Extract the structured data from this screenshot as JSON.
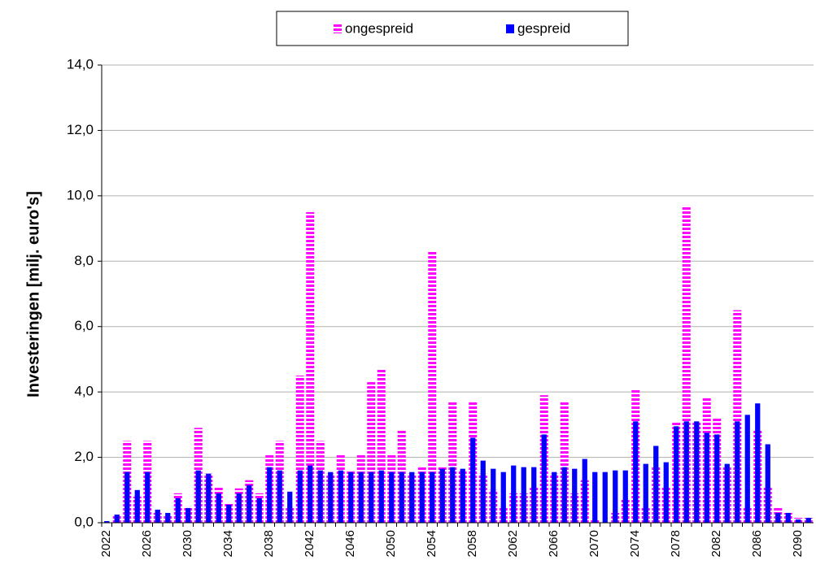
{
  "chart_data": {
    "type": "bar",
    "ylabel": "Investeringen [milj. euro's]",
    "categories": [
      "2022",
      null,
      null,
      null,
      "2026",
      null,
      null,
      null,
      "2030",
      null,
      null,
      null,
      "2034",
      null,
      null,
      null,
      "2038",
      null,
      null,
      null,
      "2042",
      null,
      null,
      null,
      "2046",
      null,
      null,
      null,
      "2050",
      null,
      null,
      null,
      "2054",
      null,
      null,
      null,
      "2058",
      null,
      null,
      null,
      "2062",
      null,
      null,
      null,
      "2066",
      null,
      null,
      null,
      "2070",
      null,
      null,
      null,
      "2074",
      null,
      null,
      null,
      "2078",
      null,
      null,
      null,
      "2082",
      null,
      null,
      null,
      "2086",
      null,
      null,
      null,
      "2090",
      null
    ],
    "series": [
      {
        "name": "ongespreid",
        "color": "#ff00ff",
        "values": [
          0,
          0.2,
          2.5,
          0.8,
          2.5,
          0.3,
          0.2,
          0.9,
          0.5,
          2.9,
          1.5,
          1.1,
          0.6,
          1.05,
          1.3,
          0.9,
          2.1,
          2.5,
          0.5,
          4.5,
          9.5,
          2.5,
          1.5,
          2.1,
          1.6,
          2.1,
          4.3,
          4.7,
          2.1,
          2.85,
          1.5,
          1.7,
          8.3,
          1.7,
          3.7,
          1.6,
          3.7,
          1.5,
          1.0,
          0.5,
          0.9,
          0.9,
          1.1,
          3.9,
          1.5,
          3.7,
          0.9,
          1.3,
          0.1,
          0,
          0.3,
          0.7,
          4.1,
          0.5,
          1.7,
          1.1,
          3.1,
          9.7,
          3.1,
          3.85,
          3.2,
          1.7,
          6.5,
          0.5,
          2.85,
          1.1,
          0.45,
          0.3,
          0.15,
          0.15
        ]
      },
      {
        "name": "gespreid",
        "color": "#0000ff",
        "values": [
          0.05,
          0.25,
          1.55,
          1.0,
          1.55,
          0.4,
          0.3,
          0.75,
          0.45,
          1.6,
          1.5,
          0.9,
          0.55,
          0.9,
          1.15,
          0.75,
          1.7,
          1.6,
          0.95,
          1.6,
          1.75,
          1.6,
          1.55,
          1.6,
          1.55,
          1.55,
          1.55,
          1.6,
          1.55,
          1.55,
          1.55,
          1.55,
          1.55,
          1.65,
          1.7,
          1.65,
          2.6,
          1.9,
          1.65,
          1.55,
          1.75,
          1.7,
          1.7,
          2.7,
          1.55,
          1.7,
          1.65,
          1.95,
          1.55,
          1.55,
          1.6,
          1.6,
          3.1,
          1.8,
          2.35,
          1.85,
          2.95,
          3.1,
          3.1,
          2.75,
          2.7,
          1.8,
          3.1,
          3.3,
          3.65,
          2.4,
          0.3,
          0.3,
          0.1,
          0.15
        ]
      }
    ],
    "ylim": [
      0,
      14
    ],
    "yticks": [
      {
        "value": 0,
        "label": "0,0"
      },
      {
        "value": 2,
        "label": "2,0"
      },
      {
        "value": 4,
        "label": "4,0"
      },
      {
        "value": 6,
        "label": "6,0"
      },
      {
        "value": 8,
        "label": "8,0"
      },
      {
        "value": 10,
        "label": "10,0"
      },
      {
        "value": 12,
        "label": "12,0"
      },
      {
        "value": 14,
        "label": "14,0"
      }
    ],
    "grid": true,
    "legend": "top"
  }
}
